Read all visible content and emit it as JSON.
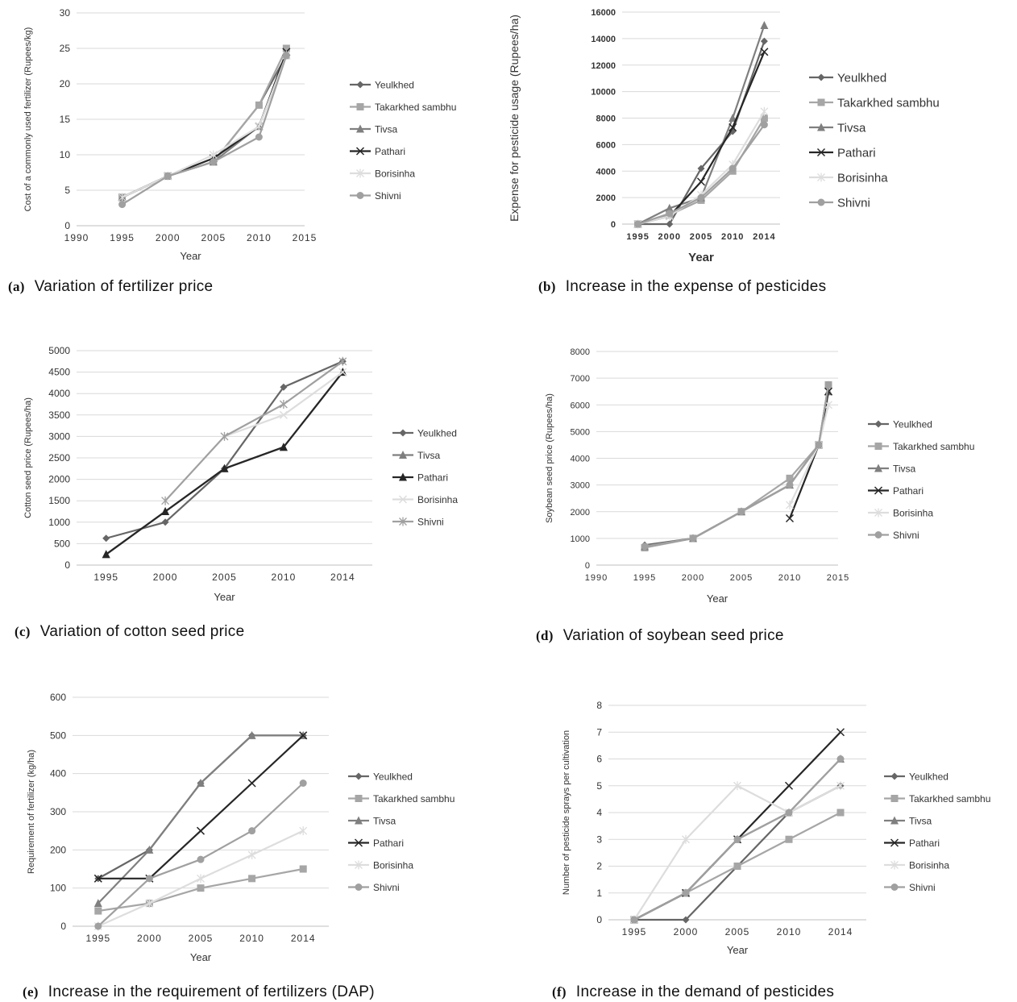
{
  "colors": {
    "Yeulkhed": "#666666",
    "Takarkhed sambhu": "#a6a6a6",
    "Tivsa": "#7f7f7f",
    "Pathari": "#262626",
    "Borisinha": "#dddddd",
    "Shivni": "#a0a0a0"
  },
  "captions": {
    "a": {
      "label": "(a)",
      "text": "Variation of fertilizer price"
    },
    "b": {
      "label": "(b)",
      "text": "Increase in the expense of pesticides"
    },
    "c": {
      "label": "(c)",
      "text": "Variation of cotton seed price"
    },
    "d": {
      "label": "(d)",
      "text": "Variation of soybean seed price"
    },
    "e": {
      "label": "(e)",
      "text": "Increase in the requirement of fertilizers (DAP)"
    },
    "f": {
      "label": "(f)",
      "text": "Increase in the demand of pesticides"
    }
  },
  "chart_data": [
    {
      "id": "a",
      "type": "scatter",
      "xlabel": "Year",
      "ylabel": "Cost of a commonly used fertilizer (Rupees/kg)",
      "xlim": [
        1990,
        2015
      ],
      "xticks": [
        1990,
        1995,
        2000,
        2005,
        2010,
        2015
      ],
      "ylim": [
        0,
        30
      ],
      "yticks": [
        0,
        5,
        10,
        15,
        20,
        25,
        30
      ],
      "legend": "right",
      "series": [
        {
          "name": "Yeulkhed",
          "marker": "diamond",
          "x": [
            1995,
            2000,
            2005,
            2010,
            2013
          ],
          "y": [
            4,
            7,
            9,
            17,
            24
          ]
        },
        {
          "name": "Takarkhed sambhu",
          "marker": "square",
          "x": [
            1995,
            2000,
            2005,
            2010,
            2013
          ],
          "y": [
            4,
            7,
            9,
            17,
            25
          ]
        },
        {
          "name": "Tivsa",
          "marker": "triangle",
          "x": [
            1995,
            2000,
            2005,
            2010,
            2013
          ],
          "y": [
            4,
            7,
            9,
            14,
            24
          ]
        },
        {
          "name": "Pathari",
          "marker": "x",
          "x": [
            1995,
            2000,
            2005,
            2010,
            2013
          ],
          "y": [
            4,
            7,
            9.5,
            14,
            24.5
          ]
        },
        {
          "name": "Borisinha",
          "marker": "star",
          "x": [
            1995,
            2000,
            2005,
            2010,
            2013
          ],
          "y": [
            4,
            7,
            10,
            14,
            24
          ]
        },
        {
          "name": "Shivni",
          "marker": "circle",
          "x": [
            1995,
            2000,
            2005,
            2010,
            2013
          ],
          "y": [
            3,
            7,
            9,
            12.5,
            24
          ]
        }
      ]
    },
    {
      "id": "b",
      "type": "line",
      "xlabel": "Year",
      "ylabel": "Expense for pesticide usage (Rupees/ha)",
      "categories": [
        "1995",
        "2000",
        "2005",
        "2010",
        "2014"
      ],
      "ylim": [
        0,
        16000
      ],
      "yticks": [
        0,
        2000,
        4000,
        6000,
        8000,
        10000,
        12000,
        14000,
        16000
      ],
      "legend": "right",
      "series": [
        {
          "name": "Yeulkhed",
          "marker": "diamond",
          "values": [
            0,
            0,
            4200,
            7000,
            13800
          ]
        },
        {
          "name": "Takarkhed sambhu",
          "marker": "square",
          "values": [
            0,
            700,
            1800,
            4000,
            8000
          ]
        },
        {
          "name": "Tivsa",
          "marker": "triangle",
          "values": [
            0,
            1200,
            2000,
            8000,
            15000
          ]
        },
        {
          "name": "Pathari",
          "marker": "x",
          "values": [
            0,
            600,
            3200,
            7300,
            13000
          ]
        },
        {
          "name": "Borisinha",
          "marker": "star",
          "values": [
            0,
            600,
            2200,
            4500,
            8500
          ]
        },
        {
          "name": "Shivni",
          "marker": "circle",
          "values": [
            0,
            800,
            2000,
            4200,
            7500
          ]
        }
      ]
    },
    {
      "id": "c",
      "type": "line",
      "xlabel": "Year",
      "ylabel": "Cotton seed price (Rupees/ha)",
      "categories": [
        "1995",
        "2000",
        "2005",
        "2010",
        "2014"
      ],
      "ylim": [
        0,
        5000
      ],
      "yticks": [
        0,
        500,
        1000,
        1500,
        2000,
        2500,
        3000,
        3500,
        4000,
        4500,
        5000
      ],
      "legend": "right",
      "series": [
        {
          "name": "Yeulkhed",
          "marker": "diamond",
          "values": [
            625,
            1000,
            2250,
            4150,
            4750
          ]
        },
        {
          "name": "Tivsa",
          "marker": "triangle",
          "values": [
            250,
            1250,
            2250,
            2750,
            4500
          ]
        },
        {
          "name": "Pathari",
          "marker": "triangle",
          "values": [
            250,
            1250,
            2250,
            2750,
            4500
          ]
        },
        {
          "name": "Borisinha",
          "marker": "x",
          "values": [
            null,
            null,
            3000,
            3500,
            4500
          ]
        },
        {
          "name": "Shivni",
          "marker": "star",
          "values": [
            null,
            1500,
            3000,
            3750,
            4750
          ]
        }
      ]
    },
    {
      "id": "d",
      "type": "scatter",
      "xlabel": "Year",
      "ylabel": "Soybean seed price (Rupees/ha)",
      "xlim": [
        1990,
        2015
      ],
      "xticks": [
        1990,
        1995,
        2000,
        2005,
        2010,
        2015
      ],
      "ylim": [
        0,
        8000
      ],
      "yticks": [
        0,
        1000,
        2000,
        3000,
        4000,
        5000,
        6000,
        7000,
        8000
      ],
      "legend": "right",
      "series": [
        {
          "name": "Yeulkhed",
          "marker": "diamond",
          "x": [
            1995,
            2000,
            2005,
            2010,
            2013,
            2014
          ],
          "y": [
            750,
            1000,
            2000,
            3000,
            4500,
            6750
          ]
        },
        {
          "name": "Takarkhed sambhu",
          "marker": "square",
          "x": [
            1995,
            2000,
            2005,
            2010,
            2013,
            2014
          ],
          "y": [
            650,
            1000,
            2000,
            3250,
            4500,
            6750
          ]
        },
        {
          "name": "Tivsa",
          "marker": "triangle",
          "x": [
            1995,
            2000,
            2005,
            2010,
            2013,
            2014
          ],
          "y": [
            700,
            1000,
            2000,
            3000,
            4500,
            6500
          ]
        },
        {
          "name": "Pathari",
          "marker": "x",
          "x": [
            2010,
            2013,
            2014
          ],
          "y": [
            1750,
            4500,
            6500
          ]
        },
        {
          "name": "Borisinha",
          "marker": "star",
          "x": [
            2010,
            2013,
            2014
          ],
          "y": [
            2250,
            4500,
            6000
          ]
        },
        {
          "name": "Shivni",
          "marker": "circle",
          "x": [
            1995,
            2000,
            2005,
            2010,
            2013,
            2014
          ],
          "y": [
            700,
            1000,
            2000,
            3000,
            4500,
            6750
          ]
        }
      ]
    },
    {
      "id": "e",
      "type": "line",
      "xlabel": "Year",
      "ylabel": "Requirement of fertilizer (kg/ha)",
      "categories": [
        "1995",
        "2000",
        "2005",
        "2010",
        "2014"
      ],
      "ylim": [
        0,
        600
      ],
      "yticks": [
        0,
        100,
        200,
        300,
        400,
        500,
        600
      ],
      "legend": "right",
      "series": [
        {
          "name": "Yeulkhed",
          "marker": "diamond",
          "values": [
            125,
            200,
            375,
            500,
            500
          ]
        },
        {
          "name": "Takarkhed sambhu",
          "marker": "square",
          "values": [
            40,
            60,
            100,
            125,
            150
          ]
        },
        {
          "name": "Tivsa",
          "marker": "triangle",
          "values": [
            60,
            200,
            375,
            500,
            500
          ]
        },
        {
          "name": "Pathari",
          "marker": "x",
          "values": [
            125,
            125,
            250,
            375,
            500
          ]
        },
        {
          "name": "Borisinha",
          "marker": "star",
          "values": [
            0,
            60,
            125,
            187,
            250
          ]
        },
        {
          "name": "Shivni",
          "marker": "circle",
          "values": [
            0,
            125,
            175,
            250,
            375
          ]
        }
      ]
    },
    {
      "id": "f",
      "type": "line",
      "xlabel": "Year",
      "ylabel": "Number of pesticide sprays per cultivation",
      "categories": [
        "1995",
        "2000",
        "2005",
        "2010",
        "2014"
      ],
      "ylim": [
        0,
        8
      ],
      "yticks": [
        0,
        1,
        2,
        3,
        4,
        5,
        6,
        7,
        8
      ],
      "legend": "right",
      "series": [
        {
          "name": "Yeulkhed",
          "marker": "diamond",
          "values": [
            0,
            0,
            2,
            4,
            5
          ]
        },
        {
          "name": "Takarkhed sambhu",
          "marker": "square",
          "values": [
            0,
            1,
            2,
            3,
            4
          ]
        },
        {
          "name": "Tivsa",
          "marker": "triangle",
          "values": [
            0,
            1,
            3,
            4,
            6
          ]
        },
        {
          "name": "Pathari",
          "marker": "x",
          "values": [
            0,
            1,
            3,
            5,
            7
          ]
        },
        {
          "name": "Borisinha",
          "marker": "star",
          "values": [
            0,
            3,
            5,
            4,
            5
          ]
        },
        {
          "name": "Shivni",
          "marker": "circle",
          "values": [
            0,
            1,
            3,
            4,
            6
          ]
        }
      ]
    }
  ]
}
